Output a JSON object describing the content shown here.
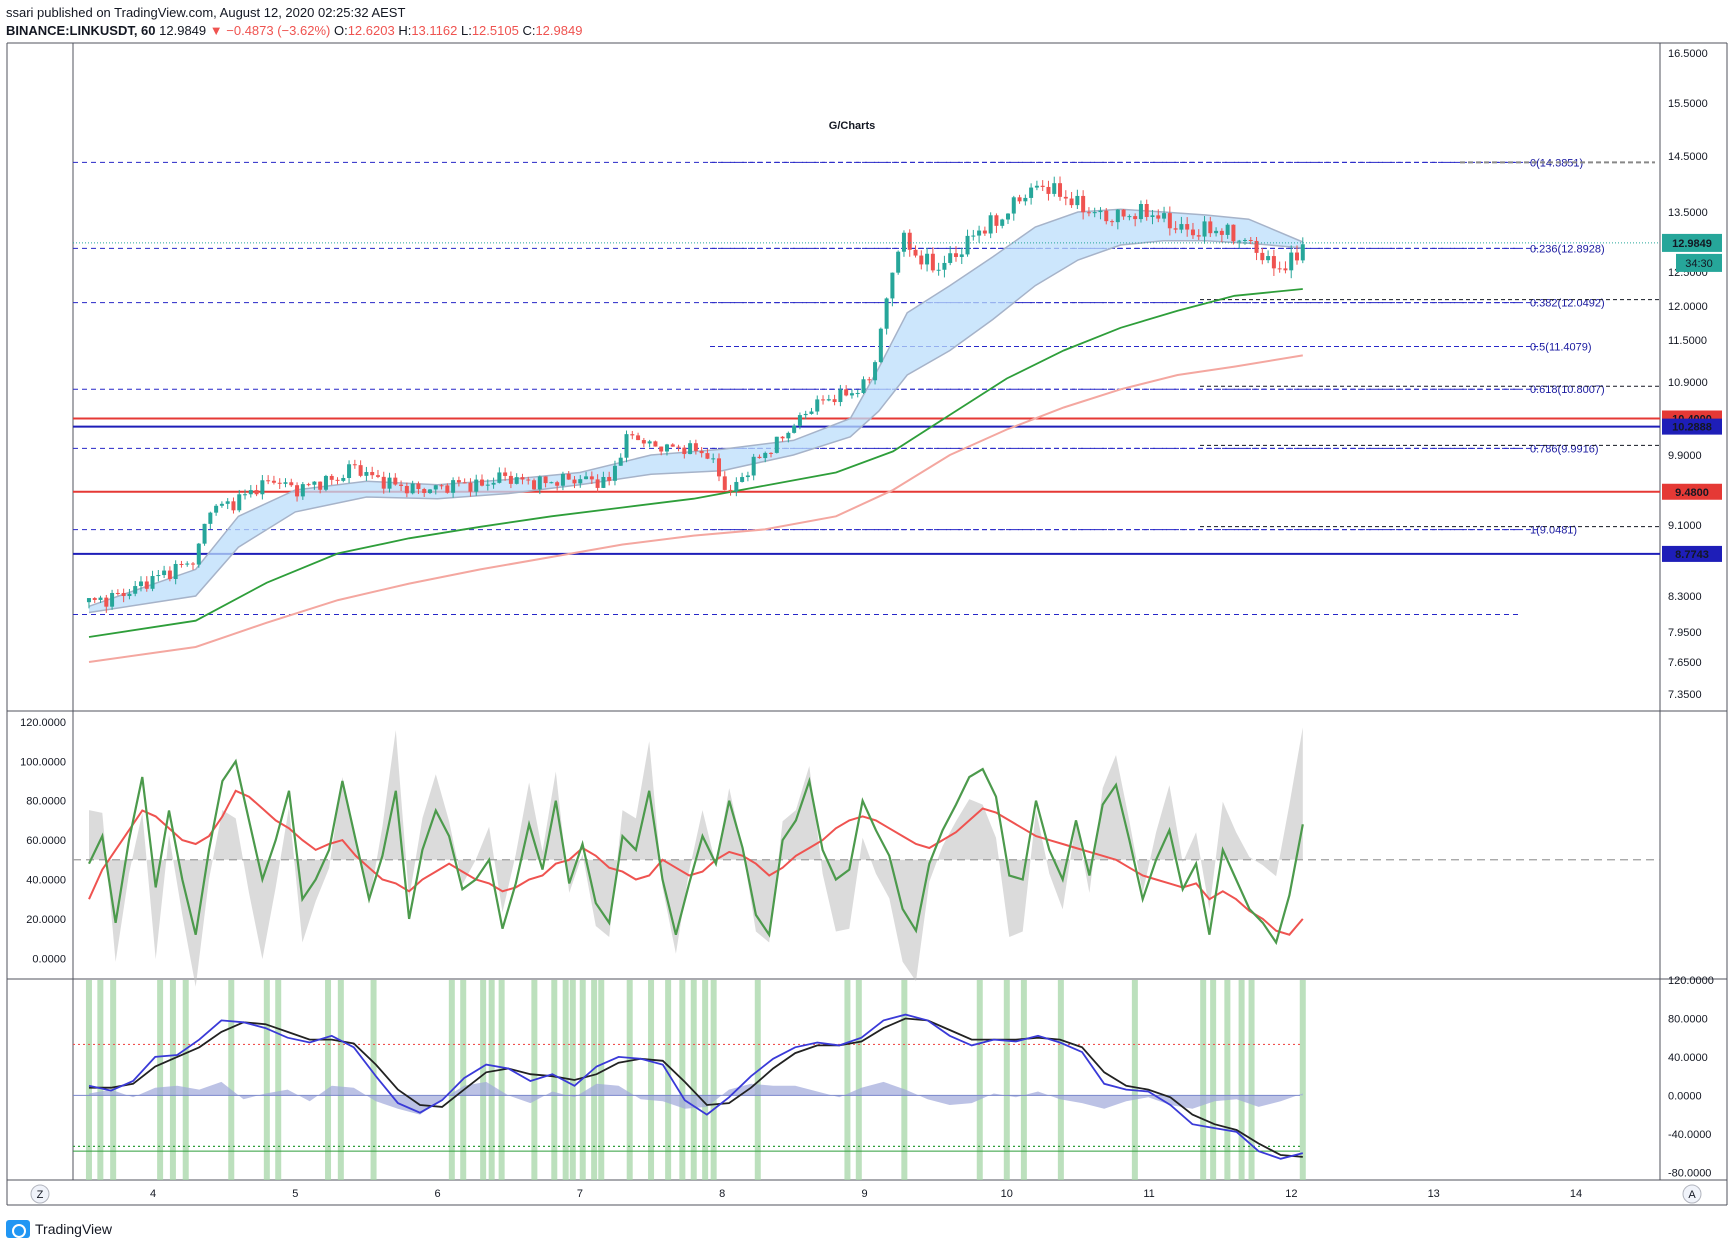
{
  "header": {
    "line1": "ssari published on TradingView.com, August 12, 2020 02:25:32 AEST",
    "symbol": "BINANCE:LINKUSDT, 60",
    "last": "12.9849",
    "change": "−0.4873 (−3.62%)",
    "o_label": "O:",
    "o_val": "12.6203",
    "h_label": "H:",
    "h_val": "13.1162",
    "l_label": "L:",
    "l_val": "12.5105",
    "c_label": "C:",
    "c_val": "12.9849"
  },
  "footer": {
    "logo_text": "TradingView"
  },
  "colors": {
    "up": "#26a69a",
    "down": "#ef5350",
    "grid": "#e0e3eb",
    "fib": "#2727c8",
    "ema_green": "#2e9e3a",
    "ema_pink": "#f4a7a0",
    "cloud": "#bbdefb",
    "stoch_green": "#4c9a4c",
    "stoch_red": "#ef5350",
    "wt_blue": "#3a3ad8",
    "wt_black": "#222222"
  },
  "chart_data": [
    {
      "type": "candlestick",
      "title": "G/Charts",
      "x_ticks": [
        "4",
        "5",
        "6",
        "7",
        "8",
        "9",
        "10",
        "11",
        "12",
        "13",
        "14"
      ],
      "y_ticks": [
        "16.5000",
        "15.5000",
        "14.5000",
        "13.5000",
        "12.5000",
        "12.0000",
        "11.5000",
        "10.9000",
        "9.9000",
        "9.1000",
        "8.3000",
        "7.9500",
        "7.6500",
        "7.3500"
      ],
      "last_price": "12.9849",
      "countdown": "34:30",
      "horizontal_levels": [
        {
          "value": 10.4,
          "label": "10.4000",
          "color": "#e53935"
        },
        {
          "value": 10.2888,
          "label": "10.2888",
          "color": "#1e1eb8"
        },
        {
          "value": 9.48,
          "label": "9.4800",
          "color": "#e53935"
        },
        {
          "value": 8.7743,
          "label": "8.7743",
          "color": "#1e1eb8"
        }
      ],
      "fib_levels": [
        {
          "ratio": "0",
          "value": 14.3851,
          "label": "0(14.3851)"
        },
        {
          "ratio": "0.236",
          "value": 12.8928,
          "label": "0.236(12.8928)"
        },
        {
          "ratio": "0.382",
          "value": 12.0492,
          "label": "0.382(12.0492)"
        },
        {
          "ratio": "0.5",
          "value": 11.4079,
          "label": "0.5(11.4079)"
        },
        {
          "ratio": "0.618",
          "value": 10.8007,
          "label": "0.618(10.8007)"
        },
        {
          "ratio": "0.786",
          "value": 9.9916,
          "label": "0.786(9.9916)"
        },
        {
          "ratio": "1",
          "value": 9.0481,
          "label": "1(9.0481)"
        }
      ],
      "dashed_levels": [
        14.3851,
        12.8928,
        12.0492,
        10.8007,
        9.9916,
        9.0481,
        8.12
      ],
      "close_path": [
        [
          3.55,
          8.24
        ],
        [
          3.7,
          8.28
        ],
        [
          3.85,
          8.36
        ],
        [
          4.0,
          8.5
        ],
        [
          4.15,
          8.6
        ],
        [
          4.3,
          8.72
        ],
        [
          4.4,
          9.3
        ],
        [
          4.55,
          9.34
        ],
        [
          4.7,
          9.5
        ],
        [
          4.85,
          9.62
        ],
        [
          5.0,
          9.5
        ],
        [
          5.15,
          9.58
        ],
        [
          5.3,
          9.62
        ],
        [
          5.4,
          9.78
        ],
        [
          5.55,
          9.64
        ],
        [
          5.7,
          9.56
        ],
        [
          5.85,
          9.5
        ],
        [
          6.0,
          9.52
        ],
        [
          6.15,
          9.58
        ],
        [
          6.3,
          9.54
        ],
        [
          6.45,
          9.66
        ],
        [
          6.6,
          9.6
        ],
        [
          6.75,
          9.58
        ],
        [
          6.9,
          9.62
        ],
        [
          7.05,
          9.62
        ],
        [
          7.2,
          9.58
        ],
        [
          7.35,
          10.2
        ],
        [
          7.5,
          10.02
        ],
        [
          7.65,
          10.0
        ],
        [
          7.8,
          9.98
        ],
        [
          7.9,
          9.9
        ],
        [
          8.05,
          9.45
        ],
        [
          8.2,
          9.78
        ],
        [
          8.35,
          10.0
        ],
        [
          8.5,
          10.3
        ],
        [
          8.65,
          10.6
        ],
        [
          8.8,
          10.7
        ],
        [
          8.95,
          10.78
        ],
        [
          9.05,
          10.98
        ],
        [
          9.15,
          12.0
        ],
        [
          9.25,
          13.1
        ],
        [
          9.35,
          12.8
        ],
        [
          9.5,
          12.55
        ],
        [
          9.65,
          12.8
        ],
        [
          9.8,
          13.2
        ],
        [
          9.95,
          13.35
        ],
        [
          10.1,
          13.78
        ],
        [
          10.25,
          13.98
        ],
        [
          10.4,
          13.78
        ],
        [
          10.55,
          13.55
        ],
        [
          10.7,
          13.4
        ],
        [
          10.85,
          13.45
        ],
        [
          11.0,
          13.5
        ],
        [
          11.15,
          13.3
        ],
        [
          11.3,
          13.15
        ],
        [
          11.45,
          13.22
        ],
        [
          11.6,
          13.1
        ],
        [
          11.75,
          12.9
        ],
        [
          11.85,
          12.6
        ],
        [
          11.95,
          12.58
        ],
        [
          12.02,
          12.7
        ],
        [
          12.08,
          12.98
        ]
      ],
      "cloud_upper": [
        [
          3.55,
          8.2
        ],
        [
          4.3,
          8.6
        ],
        [
          4.6,
          9.2
        ],
        [
          5.0,
          9.5
        ],
        [
          5.5,
          9.6
        ],
        [
          6.0,
          9.56
        ],
        [
          6.5,
          9.62
        ],
        [
          7.0,
          9.7
        ],
        [
          7.5,
          9.9
        ],
        [
          8.0,
          9.98
        ],
        [
          8.5,
          10.1
        ],
        [
          8.9,
          10.4
        ],
        [
          9.1,
          11.1
        ],
        [
          9.3,
          11.9
        ],
        [
          9.6,
          12.3
        ],
        [
          9.9,
          12.75
        ],
        [
          10.2,
          13.25
        ],
        [
          10.5,
          13.5
        ],
        [
          10.8,
          13.55
        ],
        [
          11.1,
          13.5
        ],
        [
          11.4,
          13.45
        ],
        [
          11.7,
          13.38
        ],
        [
          12.08,
          13.0
        ]
      ],
      "cloud_lower": [
        [
          3.55,
          8.14
        ],
        [
          4.3,
          8.3
        ],
        [
          4.6,
          8.85
        ],
        [
          5.0,
          9.25
        ],
        [
          5.5,
          9.42
        ],
        [
          6.0,
          9.4
        ],
        [
          6.5,
          9.46
        ],
        [
          7.0,
          9.56
        ],
        [
          7.5,
          9.68
        ],
        [
          8.0,
          9.72
        ],
        [
          8.5,
          9.9
        ],
        [
          8.9,
          10.15
        ],
        [
          9.1,
          10.5
        ],
        [
          9.3,
          11.0
        ],
        [
          9.6,
          11.35
        ],
        [
          9.9,
          11.8
        ],
        [
          10.2,
          12.3
        ],
        [
          10.5,
          12.7
        ],
        [
          10.8,
          12.95
        ],
        [
          11.1,
          13.02
        ],
        [
          11.4,
          13.02
        ],
        [
          11.7,
          12.98
        ],
        [
          12.08,
          12.9
        ]
      ],
      "ema_green": [
        [
          3.55,
          7.9
        ],
        [
          4.3,
          8.06
        ],
        [
          4.8,
          8.45
        ],
        [
          5.3,
          8.78
        ],
        [
          5.8,
          8.95
        ],
        [
          6.3,
          9.08
        ],
        [
          6.8,
          9.2
        ],
        [
          7.3,
          9.3
        ],
        [
          7.8,
          9.4
        ],
        [
          8.3,
          9.55
        ],
        [
          8.8,
          9.7
        ],
        [
          9.2,
          9.95
        ],
        [
          9.6,
          10.45
        ],
        [
          10.0,
          10.95
        ],
        [
          10.4,
          11.35
        ],
        [
          10.8,
          11.68
        ],
        [
          11.2,
          11.93
        ],
        [
          11.6,
          12.15
        ],
        [
          12.08,
          12.25
        ]
      ],
      "ema_pink": [
        [
          3.55,
          7.65
        ],
        [
          4.3,
          7.8
        ],
        [
          4.8,
          8.04
        ],
        [
          5.3,
          8.26
        ],
        [
          5.8,
          8.44
        ],
        [
          6.3,
          8.6
        ],
        [
          6.8,
          8.74
        ],
        [
          7.3,
          8.88
        ],
        [
          7.8,
          8.98
        ],
        [
          8.3,
          9.05
        ],
        [
          8.8,
          9.2
        ],
        [
          9.2,
          9.5
        ],
        [
          9.6,
          9.9
        ],
        [
          10.0,
          10.25
        ],
        [
          10.4,
          10.55
        ],
        [
          10.8,
          10.8
        ],
        [
          11.2,
          11.0
        ],
        [
          11.6,
          11.12
        ],
        [
          12.08,
          11.28
        ]
      ]
    },
    {
      "type": "line",
      "title": "",
      "y_ticks": [
        "120.0000",
        "100.0000",
        "80.0000",
        "60.0000",
        "40.0000",
        "20.0000",
        "0.0000"
      ],
      "ylim": [
        -10,
        125
      ],
      "midline": 50,
      "series": [
        {
          "values": [
            48,
            62,
            18,
            60,
            92,
            36,
            75,
            40,
            12,
            55,
            90,
            100,
            70,
            40,
            60,
            85,
            30,
            40,
            55,
            90,
            60,
            30,
            52,
            85,
            20,
            55,
            75,
            62,
            35,
            40,
            50,
            15,
            38,
            68,
            45,
            80,
            38,
            58,
            28,
            18,
            62,
            55,
            85,
            40,
            12,
            38,
            62,
            48,
            80,
            56,
            22,
            12,
            60,
            70,
            90,
            55,
            40,
            45,
            80,
            65,
            52,
            25,
            14,
            48,
            65,
            78,
            92,
            96,
            82,
            42,
            40,
            80,
            55,
            40,
            70,
            42,
            78,
            88,
            60,
            30,
            50,
            65,
            35,
            48,
            12,
            55,
            40,
            25,
            18,
            8,
            32,
            68
          ]
        },
        {
          "values": [
            30,
            45,
            55,
            65,
            75,
            72,
            66,
            60,
            58,
            62,
            72,
            85,
            82,
            76,
            70,
            66,
            60,
            55,
            58,
            60,
            52,
            46,
            40,
            38,
            34,
            40,
            44,
            48,
            44,
            40,
            38,
            34,
            36,
            40,
            42,
            48,
            50,
            56,
            52,
            46,
            44,
            40,
            42,
            50,
            46,
            42,
            44,
            50,
            54,
            52,
            48,
            42,
            46,
            52,
            56,
            60,
            66,
            70,
            72,
            70,
            66,
            62,
            58,
            56,
            60,
            64,
            70,
            76,
            74,
            70,
            66,
            62,
            60,
            58,
            56,
            54,
            52,
            50,
            46,
            42,
            40,
            38,
            36,
            38,
            30,
            34,
            30,
            24,
            20,
            14,
            12,
            20
          ]
        }
      ]
    },
    {
      "type": "line",
      "title": "",
      "y_ticks": [
        "120.0000",
        "80.0000",
        "40.0000",
        "0.0000",
        "-40.0000",
        "-80.0000"
      ],
      "ylim": [
        -88,
        120
      ],
      "upper_level": 53,
      "lower_level": -53,
      "series": [
        {
          "values": [
            10,
            5,
            15,
            40,
            42,
            58,
            78,
            76,
            70,
            60,
            55,
            62,
            50,
            20,
            -8,
            -18,
            -5,
            18,
            32,
            28,
            15,
            22,
            10,
            30,
            40,
            38,
            32,
            -5,
            -20,
            -2,
            20,
            38,
            50,
            55,
            52,
            60,
            78,
            84,
            78,
            62,
            52,
            58,
            56,
            62,
            55,
            45,
            12,
            6,
            4,
            -10,
            -30,
            -34,
            -38,
            -58,
            -66,
            -60
          ]
        },
        {
          "values": [
            8,
            8,
            12,
            30,
            40,
            50,
            66,
            76,
            74,
            66,
            58,
            58,
            54,
            32,
            6,
            -10,
            -12,
            6,
            24,
            28,
            22,
            20,
            16,
            22,
            34,
            38,
            36,
            14,
            -10,
            -8,
            8,
            28,
            44,
            52,
            52,
            56,
            70,
            80,
            78,
            68,
            58,
            58,
            58,
            60,
            58,
            50,
            24,
            10,
            6,
            -2,
            -20,
            -30,
            -36,
            -50,
            -62,
            -64
          ]
        }
      ],
      "hist": [
        2,
        6,
        -2,
        8,
        10,
        6,
        14,
        -4,
        2,
        6,
        -6,
        10,
        8,
        -6,
        -14,
        -20,
        -4,
        10,
        14,
        0,
        -8,
        4,
        -2,
        12,
        10,
        -4,
        -6,
        -14,
        -12,
        6,
        12,
        10,
        10,
        4,
        -2,
        8,
        14,
        6,
        -4,
        -10,
        -8,
        2,
        -2,
        4,
        -4,
        -8,
        -14,
        -6,
        -2,
        -10,
        -14,
        -6,
        -4,
        -12,
        -6,
        2
      ],
      "signal_bars_x": [
        3.55,
        3.63,
        3.72,
        4.05,
        4.14,
        4.23,
        4.55,
        4.8,
        4.88,
        5.23,
        5.32,
        5.55,
        6.1,
        6.18,
        6.32,
        6.38,
        6.45,
        6.68,
        6.82,
        6.9,
        6.95,
        7.02,
        7.1,
        7.15,
        7.35,
        7.5,
        7.62,
        7.72,
        7.8,
        7.88,
        7.94,
        8.25,
        8.88,
        8.96,
        9.28,
        9.81,
        10.0,
        10.12,
        10.38,
        10.9,
        11.38,
        11.45,
        11.55,
        11.65,
        11.72,
        12.08
      ]
    }
  ]
}
